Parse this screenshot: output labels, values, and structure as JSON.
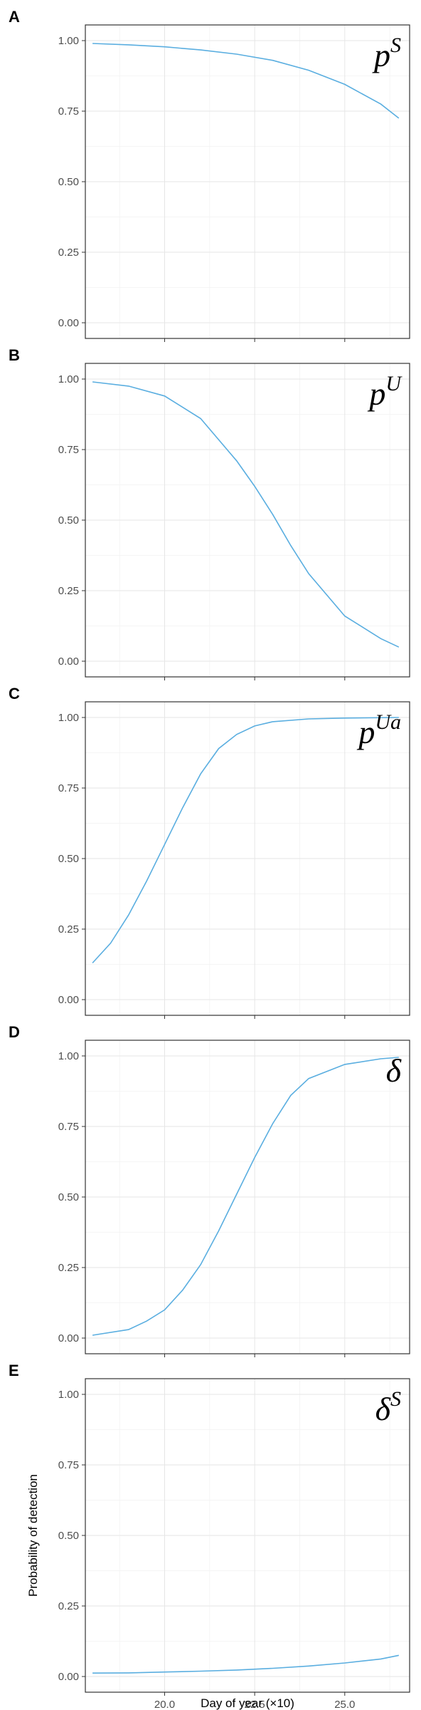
{
  "chart_data": [
    {
      "type": "line",
      "panel_label": "A",
      "parameter_label": {
        "base": "p",
        "sup": "S"
      },
      "ylabel": "",
      "xlabel": "",
      "ylim": [
        0,
        1
      ],
      "xlim": [
        17.8,
        26.8
      ],
      "y_ticks": [
        "0.00",
        "0.25",
        "0.50",
        "0.75",
        "1.00"
      ],
      "x_ticks": [
        "20.0",
        "22.5",
        "25.0"
      ],
      "grid": true,
      "x": [
        18.0,
        19.0,
        20.0,
        21.0,
        22.0,
        23.0,
        24.0,
        25.0,
        26.0,
        26.5
      ],
      "y": [
        0.99,
        0.985,
        0.978,
        0.967,
        0.952,
        0.93,
        0.895,
        0.845,
        0.775,
        0.725
      ]
    },
    {
      "type": "line",
      "panel_label": "B",
      "parameter_label": {
        "base": "p",
        "sup": "U"
      },
      "ylabel": "",
      "xlabel": "",
      "ylim": [
        0,
        1
      ],
      "xlim": [
        17.8,
        26.8
      ],
      "y_ticks": [
        "0.00",
        "0.25",
        "0.50",
        "0.75",
        "1.00"
      ],
      "x_ticks": [
        "20.0",
        "22.5",
        "25.0"
      ],
      "grid": true,
      "x": [
        18.0,
        19.0,
        20.0,
        21.0,
        22.0,
        22.5,
        23.0,
        23.5,
        24.0,
        25.0,
        26.0,
        26.5
      ],
      "y": [
        0.99,
        0.975,
        0.94,
        0.86,
        0.71,
        0.62,
        0.52,
        0.41,
        0.31,
        0.16,
        0.08,
        0.05
      ]
    },
    {
      "type": "line",
      "panel_label": "C",
      "parameter_label": {
        "base": "p",
        "sup": "Ua"
      },
      "ylabel": "",
      "xlabel": "",
      "ylim": [
        0,
        1
      ],
      "xlim": [
        17.8,
        26.8
      ],
      "y_ticks": [
        "0.00",
        "0.25",
        "0.50",
        "0.75",
        "1.00"
      ],
      "x_ticks": [
        "20.0",
        "22.5",
        "25.0"
      ],
      "grid": true,
      "x": [
        18.0,
        18.5,
        19.0,
        19.5,
        20.0,
        20.5,
        21.0,
        21.5,
        22.0,
        22.5,
        23.0,
        24.0,
        25.0,
        26.5
      ],
      "y": [
        0.13,
        0.2,
        0.3,
        0.42,
        0.55,
        0.68,
        0.8,
        0.89,
        0.94,
        0.97,
        0.985,
        0.995,
        0.998,
        1.0
      ]
    },
    {
      "type": "line",
      "panel_label": "D",
      "parameter_label": {
        "base": "δ",
        "sup": ""
      },
      "ylabel": "",
      "xlabel": "",
      "ylim": [
        0,
        1
      ],
      "xlim": [
        17.8,
        26.8
      ],
      "y_ticks": [
        "0.00",
        "0.25",
        "0.50",
        "0.75",
        "1.00"
      ],
      "x_ticks": [
        "20.0",
        "22.5",
        "25.0"
      ],
      "grid": true,
      "x": [
        18.0,
        19.0,
        19.5,
        20.0,
        20.5,
        21.0,
        21.5,
        22.0,
        22.5,
        23.0,
        23.5,
        24.0,
        25.0,
        26.0,
        26.5
      ],
      "y": [
        0.01,
        0.03,
        0.06,
        0.1,
        0.17,
        0.26,
        0.38,
        0.51,
        0.64,
        0.76,
        0.86,
        0.92,
        0.97,
        0.99,
        0.995
      ]
    },
    {
      "type": "line",
      "panel_label": "E",
      "parameter_label": {
        "base": "δ",
        "sup": "S"
      },
      "ylabel": "Probability of detection",
      "xlabel": "Day of year (×10)",
      "ylim": [
        0,
        1
      ],
      "xlim": [
        17.8,
        26.8
      ],
      "y_ticks": [
        "0.00",
        "0.25",
        "0.50",
        "0.75",
        "1.00"
      ],
      "x_ticks": [
        "20.0",
        "22.5",
        "25.0"
      ],
      "grid": true,
      "x": [
        18.0,
        19.0,
        20.0,
        21.0,
        22.0,
        23.0,
        24.0,
        25.0,
        26.0,
        26.5
      ],
      "y": [
        0.012,
        0.013,
        0.016,
        0.019,
        0.023,
        0.029,
        0.037,
        0.048,
        0.062,
        0.075
      ]
    }
  ]
}
